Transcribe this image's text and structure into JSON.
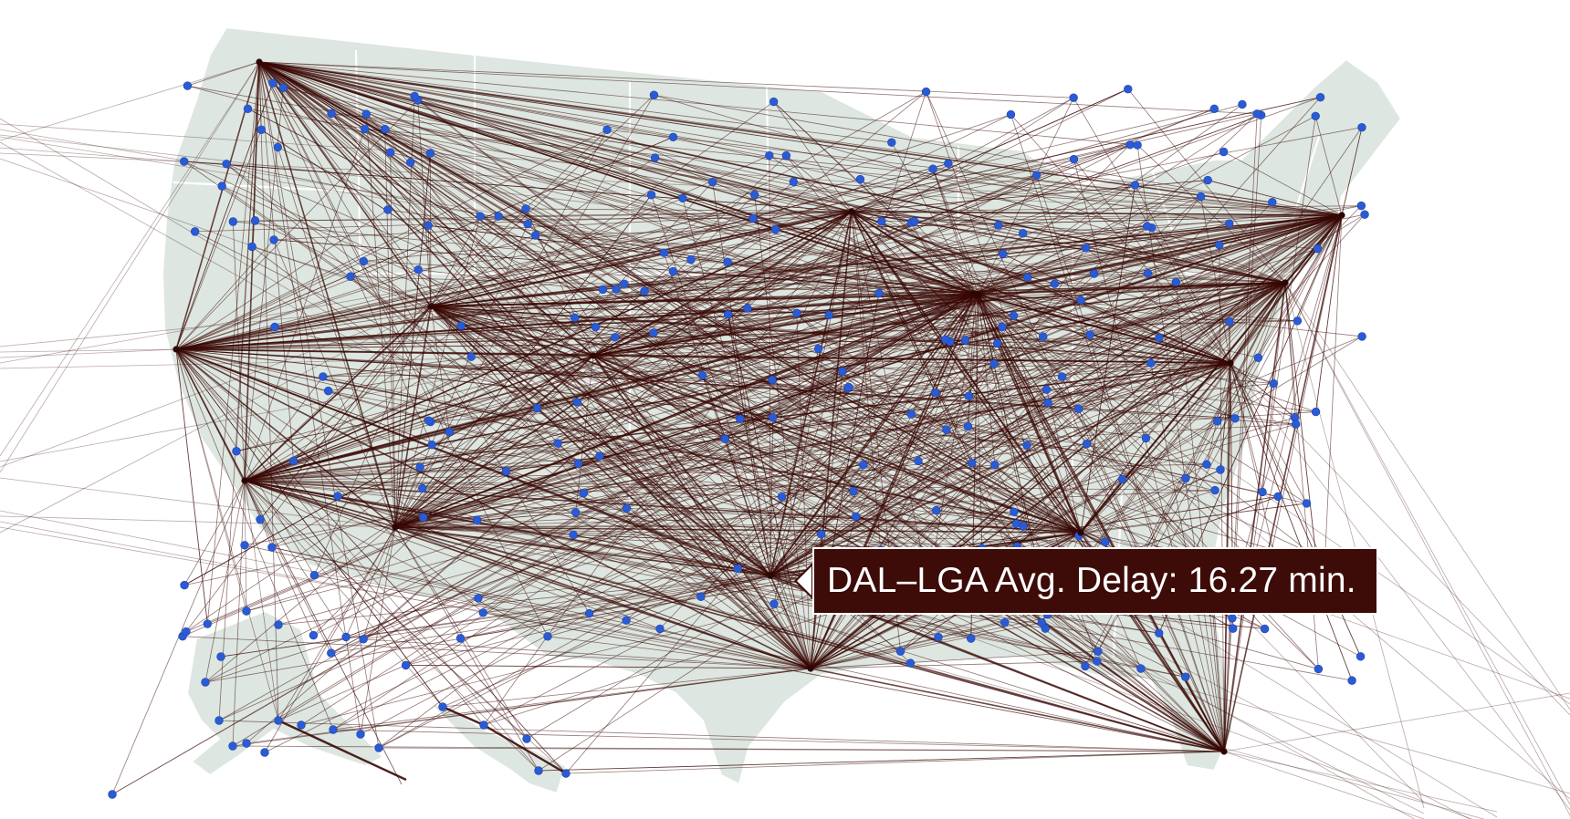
{
  "tooltip": {
    "text": "DAL–LGA Avg. Delay: 16.27 min."
  },
  "colors": {
    "land": "#dde6e0",
    "route": "#3a0a06",
    "airport": "#2a5bd7",
    "tooltip_bg": "#3d0c08"
  },
  "highlighted_route": [
    "DAL",
    "LGA"
  ]
}
